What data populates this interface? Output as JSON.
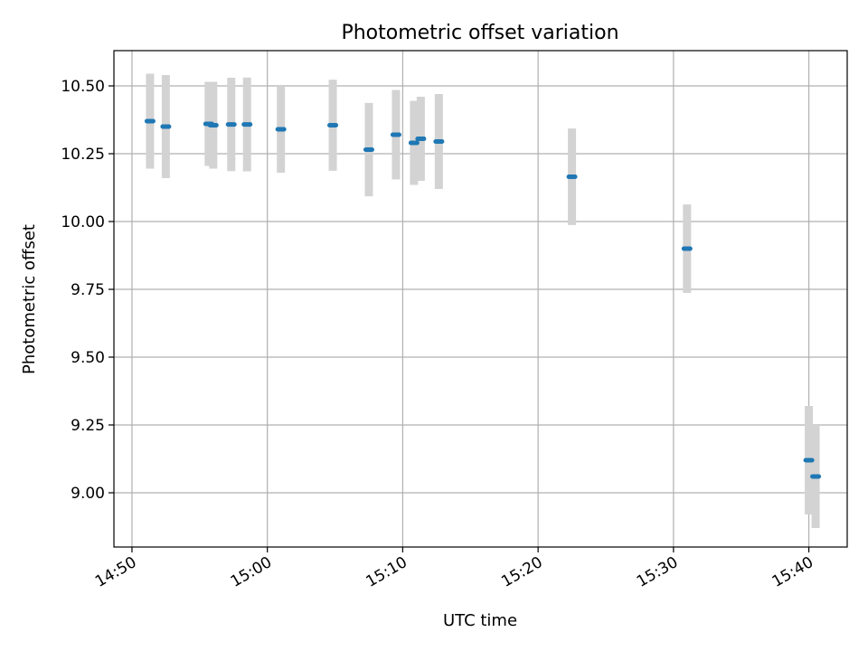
{
  "chart_data": {
    "type": "scatter",
    "title": "Photometric offset variation",
    "xlabel": "UTC time",
    "ylabel": "Photometric offset",
    "xlim": [
      "14:48:40",
      "15:42:50"
    ],
    "ylim": [
      8.8,
      10.63
    ],
    "x_ticks": [
      "14:50",
      "15:00",
      "15:10",
      "15:20",
      "15:30",
      "15:40"
    ],
    "y_ticks": [
      "9.00",
      "9.25",
      "9.50",
      "9.75",
      "10.00",
      "10.25",
      "10.50"
    ],
    "grid": true,
    "colors": {
      "point": "#1f77b4",
      "errorbar": "#d3d3d3"
    },
    "points": [
      {
        "x": "14:51:20",
        "y": 10.37,
        "err": 0.175
      },
      {
        "x": "14:52:30",
        "y": 10.35,
        "err": 0.19
      },
      {
        "x": "14:55:40",
        "y": 10.36,
        "err": 0.155
      },
      {
        "x": "14:56:00",
        "y": 10.355,
        "err": 0.16
      },
      {
        "x": "14:57:20",
        "y": 10.358,
        "err": 0.172
      },
      {
        "x": "14:58:30",
        "y": 10.358,
        "err": 0.173
      },
      {
        "x": "15:01:00",
        "y": 10.34,
        "err": 0.16
      },
      {
        "x": "15:04:50",
        "y": 10.355,
        "err": 0.168
      },
      {
        "x": "15:07:30",
        "y": 10.265,
        "err": 0.172
      },
      {
        "x": "15:09:30",
        "y": 10.32,
        "err": 0.165
      },
      {
        "x": "15:10:50",
        "y": 10.29,
        "err": 0.155
      },
      {
        "x": "15:11:20",
        "y": 10.305,
        "err": 0.155
      },
      {
        "x": "15:12:40",
        "y": 10.295,
        "err": 0.175
      },
      {
        "x": "15:22:30",
        "y": 10.165,
        "err": 0.178
      },
      {
        "x": "15:31:00",
        "y": 9.9,
        "err": 0.163
      },
      {
        "x": "15:40:00",
        "y": 9.12,
        "err": 0.2
      },
      {
        "x": "15:40:30",
        "y": 9.06,
        "err": 0.19
      }
    ]
  }
}
